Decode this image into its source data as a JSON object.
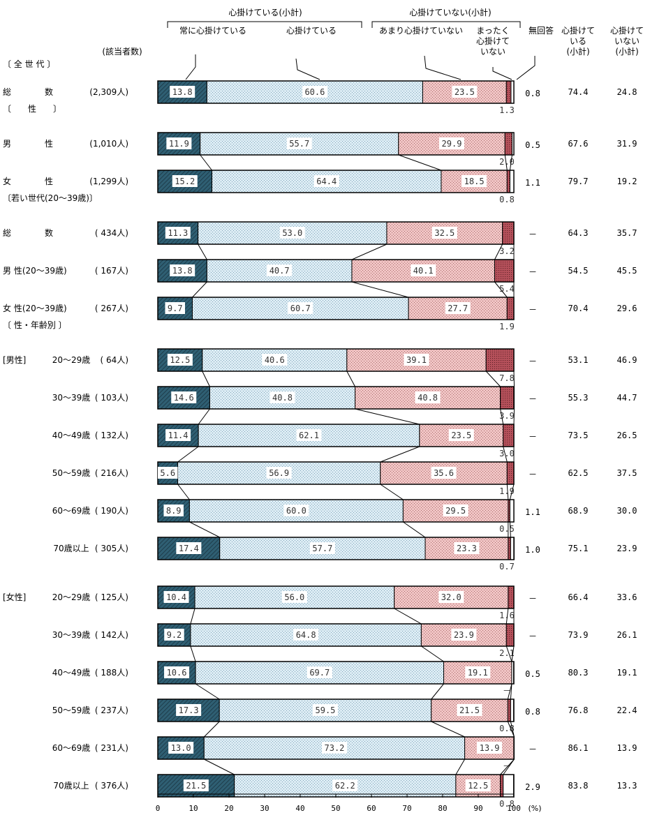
{
  "chart_data": {
    "type": "bar",
    "orientation": "horizontal",
    "stacked": true,
    "unit": "(%)",
    "xlim": [
      0,
      100
    ],
    "xticks": [
      "0",
      "10",
      "20",
      "30",
      "40",
      "50",
      "60",
      "70",
      "80",
      "90",
      "100"
    ],
    "header": {
      "group1": "心掛けている(小計)",
      "group2": "心掛けていない(小計)",
      "count_label": "(該当者数)",
      "subtotal1": [
        "心掛けて",
        "いる",
        "(小計)"
      ],
      "subtotal2": [
        "心掛けて",
        "いない",
        "(小計)"
      ]
    },
    "series": [
      {
        "name": "常に心掛けている",
        "name_lines": [
          "常に心掛けている"
        ],
        "color": "#2f5f73"
      },
      {
        "name": "心掛けている",
        "name_lines": [
          "心掛けている"
        ],
        "color": "#dcecf4"
      },
      {
        "name": "あまり心掛けていない",
        "name_lines": [
          "あまり心掛けていない"
        ],
        "color": "#f0c4c4"
      },
      {
        "name": "まったく心掛けていない",
        "name_lines": [
          "まったく",
          "心掛けて",
          "いない"
        ],
        "color": "#b4505a"
      },
      {
        "name": "無回答",
        "name_lines": [
          "無回答"
        ],
        "color": "#ffffff"
      }
    ],
    "rows": [
      {
        "heading": "〔 全 世 代 〕"
      },
      {
        "label": "総　　　　数",
        "n": "(2,309人)",
        "values": [
          13.8,
          60.6,
          23.5,
          1.3,
          0.8
        ],
        "texts": [
          "13.8",
          "60.6",
          "23.5",
          "1.3",
          "0.8"
        ],
        "sub1": "74.4",
        "sub2": "24.8"
      },
      {
        "heading": "〔　　性　　〕"
      },
      {
        "label": "男　　　　性",
        "n": "(1,010人)",
        "values": [
          11.9,
          55.7,
          29.9,
          2.0,
          0.5
        ],
        "texts": [
          "11.9",
          "55.7",
          "29.9",
          "2.0",
          "0.5"
        ],
        "sub1": "67.6",
        "sub2": "31.9"
      },
      {
        "label": "女　　　　性",
        "n": "(1,299人)",
        "values": [
          15.2,
          64.4,
          18.5,
          0.8,
          1.1
        ],
        "texts": [
          "15.2",
          "64.4",
          "18.5",
          "0.8",
          "1.1"
        ],
        "sub1": "79.7",
        "sub2": "19.2"
      },
      {
        "heading": "〔若い世代(20～39歳)〕"
      },
      {
        "label": "総　　　　数",
        "n": "( 434人)",
        "values": [
          11.3,
          53.0,
          32.5,
          3.2,
          0
        ],
        "texts": [
          "11.3",
          "53.0",
          "32.5",
          "3.2",
          "－"
        ],
        "sub1": "64.3",
        "sub2": "35.7"
      },
      {
        "label": "男 性(20～39歳)",
        "n": "( 167人)",
        "values": [
          13.8,
          40.7,
          40.1,
          5.4,
          0
        ],
        "texts": [
          "13.8",
          "40.7",
          "40.1",
          "5.4",
          "－"
        ],
        "sub1": "54.5",
        "sub2": "45.5"
      },
      {
        "label": "女 性(20～39歳)",
        "n": "( 267人)",
        "values": [
          9.7,
          60.7,
          27.7,
          1.9,
          0
        ],
        "texts": [
          "9.7",
          "60.7",
          "27.7",
          "1.9",
          "－"
        ],
        "sub1": "70.4",
        "sub2": "29.6"
      },
      {
        "heading": "〔 性・年齢別 〕"
      },
      {
        "group": "[男性]",
        "label": "20～29歳",
        "n": "(  64人)",
        "values": [
          12.5,
          40.6,
          39.1,
          7.8,
          0
        ],
        "texts": [
          "12.5",
          "40.6",
          "39.1",
          "7.8",
          "－"
        ],
        "sub1": "53.1",
        "sub2": "46.9"
      },
      {
        "label": "30～39歳",
        "n": "( 103人)",
        "values": [
          14.6,
          40.8,
          40.8,
          3.9,
          0
        ],
        "texts": [
          "14.6",
          "40.8",
          "40.8",
          "3.9",
          "－"
        ],
        "sub1": "55.3",
        "sub2": "44.7"
      },
      {
        "label": "40～49歳",
        "n": "( 132人)",
        "values": [
          11.4,
          62.1,
          23.5,
          3.0,
          0
        ],
        "texts": [
          "11.4",
          "62.1",
          "23.5",
          "3.0",
          "－"
        ],
        "sub1": "73.5",
        "sub2": "26.5"
      },
      {
        "label": "50～59歳",
        "n": "( 216人)",
        "values": [
          5.6,
          56.9,
          35.6,
          1.9,
          0
        ],
        "texts": [
          "5.6",
          "56.9",
          "35.6",
          "1.9",
          "－"
        ],
        "sub1": "62.5",
        "sub2": "37.5"
      },
      {
        "label": "60～69歳",
        "n": "( 190人)",
        "values": [
          8.9,
          60.0,
          29.5,
          0.5,
          1.1
        ],
        "texts": [
          "8.9",
          "60.0",
          "29.5",
          "0.5",
          "1.1"
        ],
        "sub1": "68.9",
        "sub2": "30.0"
      },
      {
        "label": "70歳以上",
        "n": "( 305人)",
        "values": [
          17.4,
          57.7,
          23.3,
          0.7,
          1.0
        ],
        "texts": [
          "17.4",
          "57.7",
          "23.3",
          "0.7",
          "1.0"
        ],
        "sub1": "75.1",
        "sub2": "23.9"
      },
      {
        "spacer": true
      },
      {
        "group": "[女性]",
        "label": "20～29歳",
        "n": "( 125人)",
        "values": [
          10.4,
          56.0,
          32.0,
          1.6,
          0
        ],
        "texts": [
          "10.4",
          "56.0",
          "32.0",
          "1.6",
          "－"
        ],
        "sub1": "66.4",
        "sub2": "33.6"
      },
      {
        "label": "30～39歳",
        "n": "( 142人)",
        "values": [
          9.2,
          64.8,
          23.9,
          2.1,
          0
        ],
        "texts": [
          "9.2",
          "64.8",
          "23.9",
          "2.1",
          "－"
        ],
        "sub1": "73.9",
        "sub2": "26.1"
      },
      {
        "label": "40～49歳",
        "n": "( 188人)",
        "values": [
          10.6,
          69.7,
          19.1,
          0,
          0.5
        ],
        "texts": [
          "10.6",
          "69.7",
          "19.1",
          "－",
          "0.5"
        ],
        "sub1": "80.3",
        "sub2": "19.1"
      },
      {
        "label": "50～59歳",
        "n": "( 237人)",
        "values": [
          17.3,
          59.5,
          21.5,
          0.8,
          0.8
        ],
        "texts": [
          "17.3",
          "59.5",
          "21.5",
          "0.8",
          "0.8"
        ],
        "sub1": "76.8",
        "sub2": "22.4"
      },
      {
        "label": "60～69歳",
        "n": "( 231人)",
        "values": [
          13.0,
          73.2,
          13.9,
          0,
          0
        ],
        "texts": [
          "13.0",
          "73.2",
          "13.9",
          "－",
          "－"
        ],
        "sub1": "86.1",
        "sub2": "13.9"
      },
      {
        "label": "70歳以上",
        "n": "( 376人)",
        "values": [
          21.5,
          62.2,
          12.5,
          0.8,
          2.9
        ],
        "texts": [
          "21.5",
          "62.2",
          "12.5",
          "0.8",
          "2.9"
        ],
        "sub1": "83.8",
        "sub2": "13.3"
      }
    ]
  }
}
